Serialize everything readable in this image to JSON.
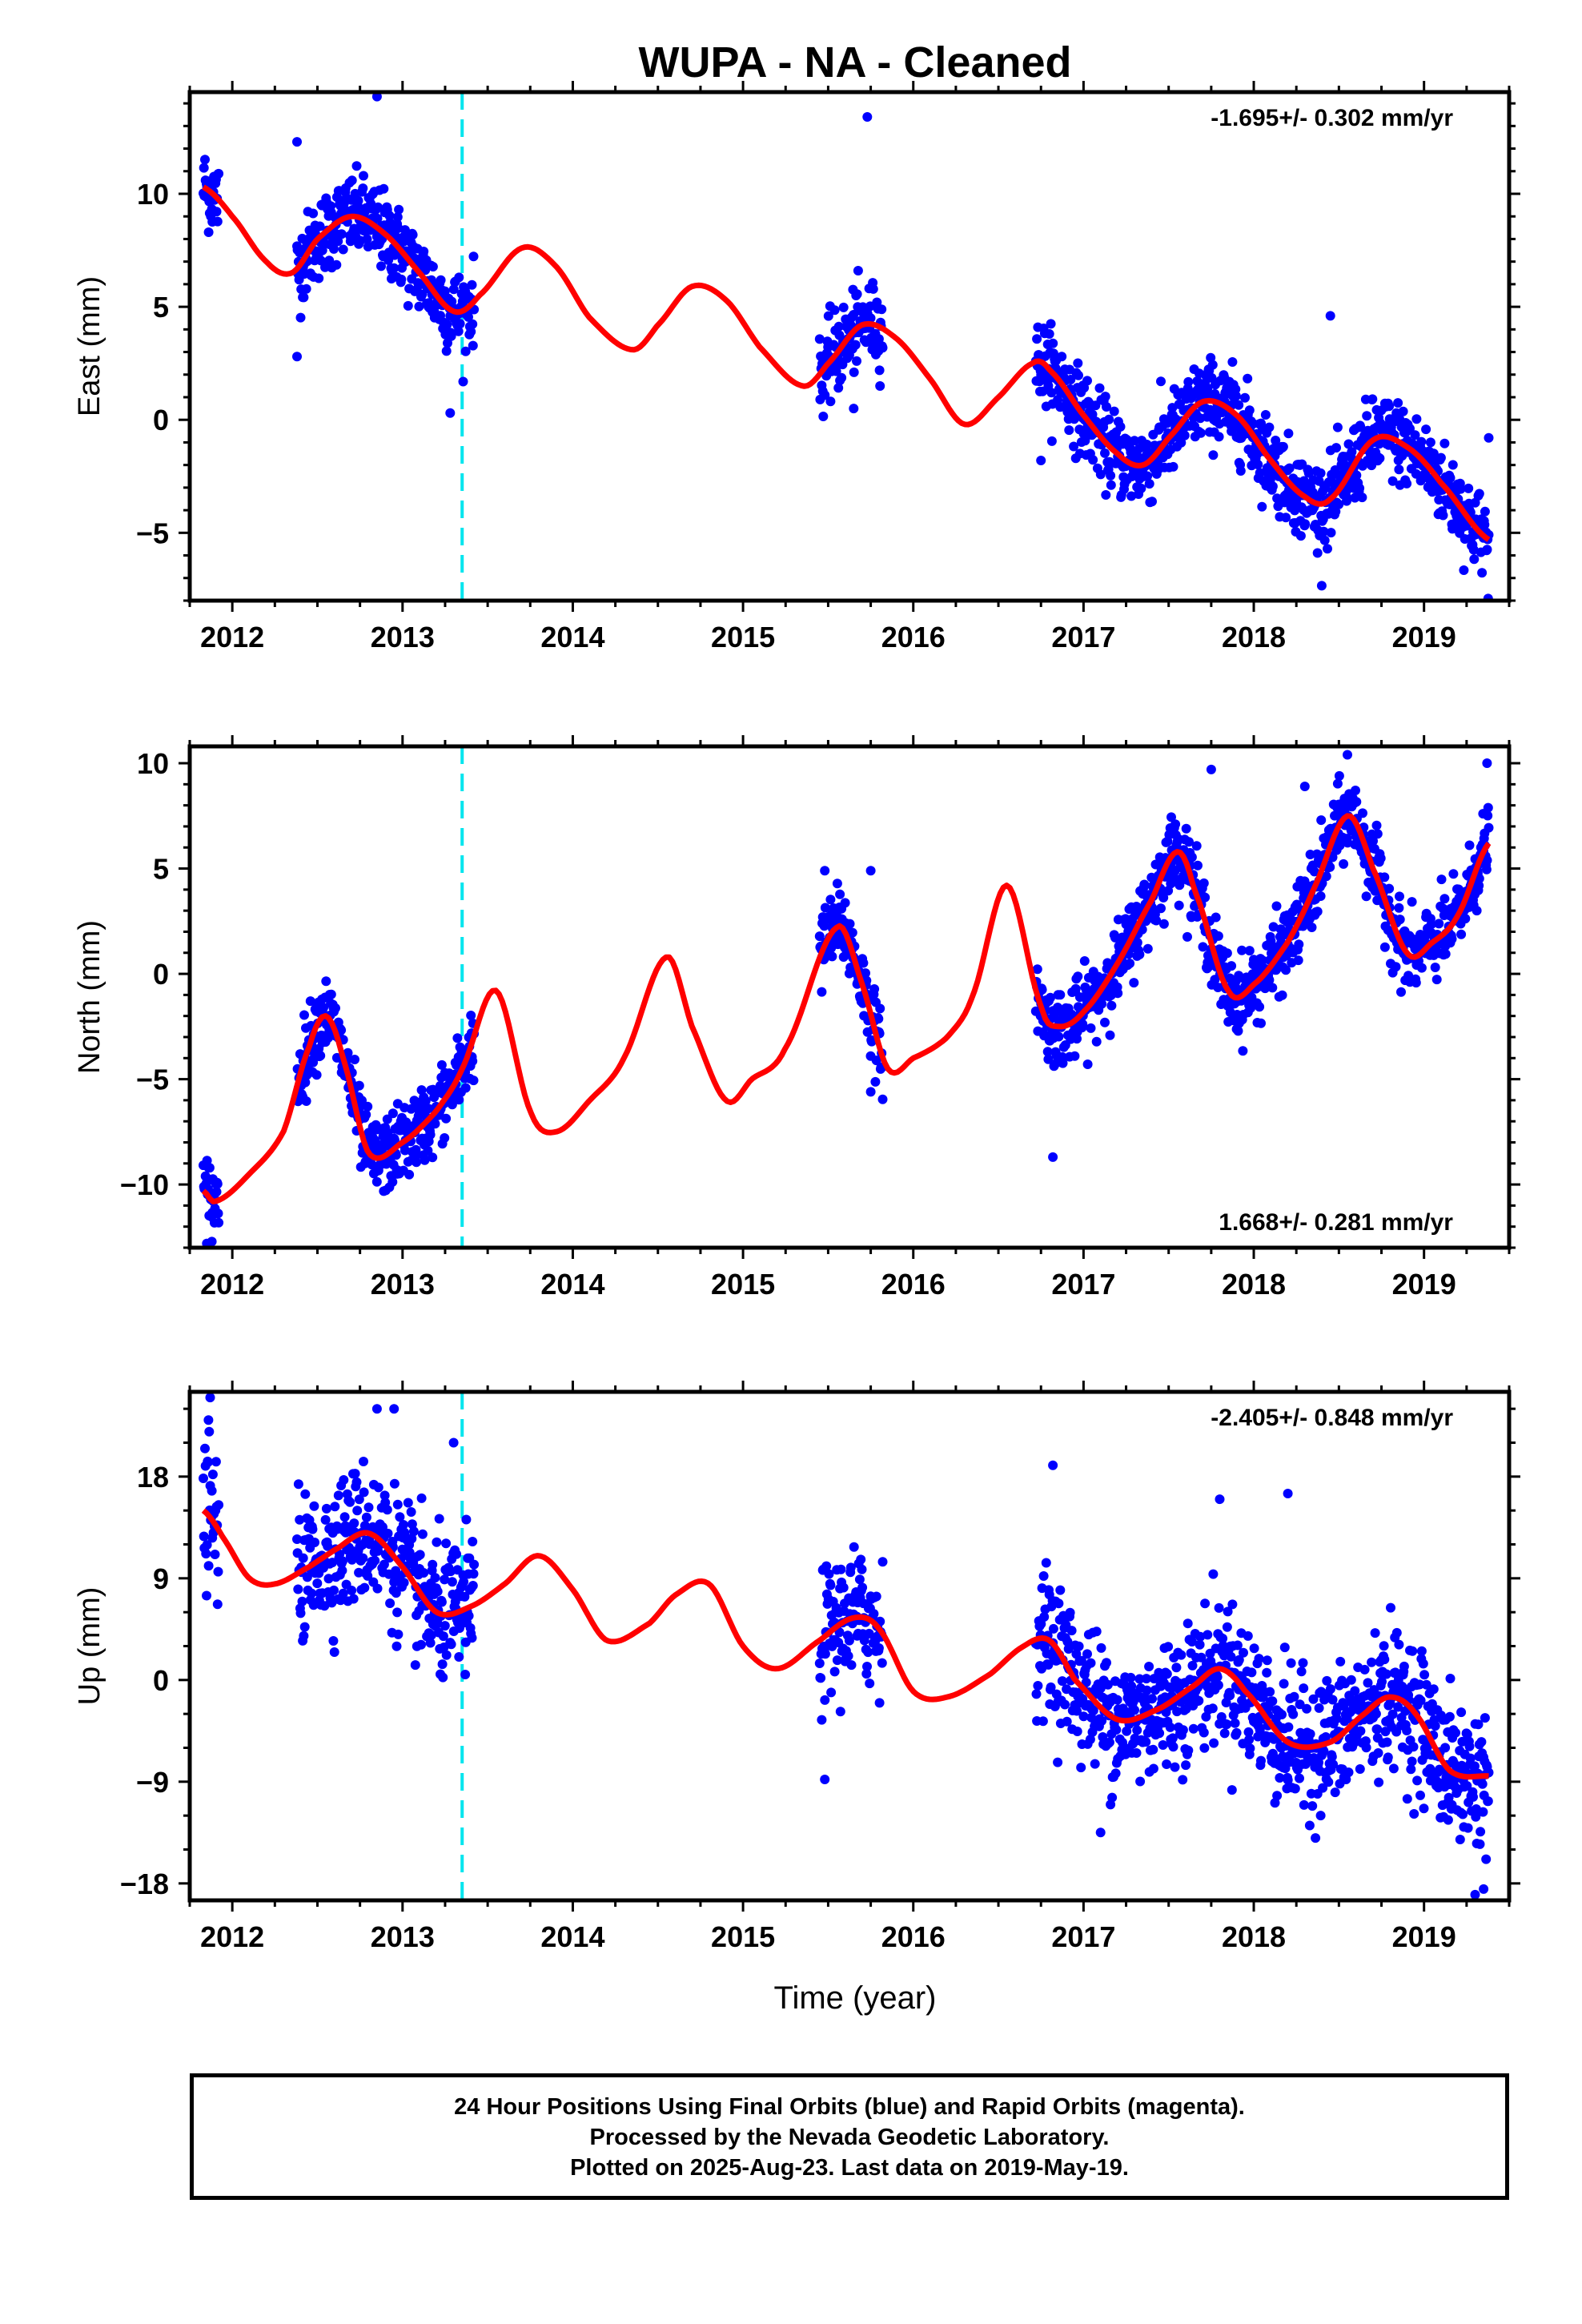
{
  "title": "WUPA  - NA - Cleaned",
  "x_axis_label": "Time (year)",
  "footer": {
    "line1": "24 Hour Positions Using Final Orbits (blue) and Rapid Orbits (magenta).",
    "line2": "Processed by the Nevada Geodetic Laboratory.",
    "line3": "Plotted on 2025-Aug-23. Last data on 2019-May-19."
  },
  "colors": {
    "data_points": "#0000ff",
    "model_fit": "#ff0000",
    "event_line": "#00e5ee",
    "frame": "#000000"
  },
  "chart_data": [
    {
      "type": "scatter",
      "panel": "East",
      "ylabel": "East (mm)",
      "rate_label": "-1.695+/- 0.302 mm/yr",
      "rate_position": "top-right",
      "xlim": [
        2011.75,
        2019.5
      ],
      "ylim": [
        -8,
        14.5
      ],
      "xticks": [
        2012,
        2013,
        2014,
        2015,
        2016,
        2017,
        2018,
        2019
      ],
      "yticks": [
        -5,
        0,
        5,
        10
      ],
      "event_line_x": 2013.35,
      "data_segments": [
        [
          2011.83,
          2011.92
        ],
        [
          2012.38,
          2013.42
        ],
        [
          2015.45,
          2015.82
        ],
        [
          2016.72,
          2019.38
        ]
      ],
      "model_series": {
        "name": "model",
        "x": [
          2011.83,
          2012.0,
          2012.2,
          2012.35,
          2012.5,
          2012.7,
          2012.9,
          2013.1,
          2013.3,
          2013.45,
          2013.7,
          2013.9,
          2014.1,
          2014.35,
          2014.5,
          2014.7,
          2014.9,
          2015.1,
          2015.35,
          2015.5,
          2015.7,
          2015.9,
          2016.1,
          2016.3,
          2016.5,
          2016.7,
          2016.8,
          2017.0,
          2017.2,
          2017.35,
          2017.5,
          2017.7,
          2017.9,
          2018.1,
          2018.3,
          2018.45,
          2018.7,
          2018.9,
          2019.1,
          2019.38
        ],
        "y": [
          10.3,
          9.0,
          7.0,
          6.5,
          8.0,
          9.0,
          8.2,
          6.5,
          4.8,
          5.5,
          7.6,
          6.8,
          4.5,
          3.1,
          4.2,
          5.9,
          5.3,
          3.2,
          1.5,
          2.5,
          4.2,
          3.6,
          1.8,
          -0.2,
          1.0,
          2.5,
          2.2,
          0.2,
          -1.5,
          -2.0,
          -0.8,
          0.8,
          0.2,
          -1.8,
          -3.4,
          -3.5,
          -0.9,
          -1.2,
          -2.8,
          -5.3
        ]
      },
      "outliers": [
        {
          "x": 2012.85,
          "y": 14.3
        },
        {
          "x": 2015.73,
          "y": 13.4
        },
        {
          "x": 2018.45,
          "y": 4.6
        },
        {
          "x": 2012.38,
          "y": 12.3
        },
        {
          "x": 2012.38,
          "y": 2.8
        },
        {
          "x": 2015.65,
          "y": 0.5
        },
        {
          "x": 2013.28,
          "y": 0.3
        },
        {
          "x": 2019.38,
          "y": -0.8
        },
        {
          "x": 2016.75,
          "y": -1.8
        }
      ]
    },
    {
      "type": "scatter",
      "panel": "North",
      "ylabel": "North (mm)",
      "rate_label": "1.668+/- 0.281 mm/yr",
      "rate_position": "bottom-right",
      "xlim": [
        2011.75,
        2019.5
      ],
      "ylim": [
        -13,
        10.8
      ],
      "xticks": [
        2012,
        2013,
        2014,
        2015,
        2016,
        2017,
        2018,
        2019
      ],
      "yticks": [
        -10,
        -5,
        0,
        5,
        10
      ],
      "event_line_x": 2013.35,
      "data_segments": [
        [
          2011.83,
          2011.92
        ],
        [
          2012.38,
          2013.42
        ],
        [
          2015.45,
          2015.82
        ],
        [
          2016.72,
          2019.38
        ]
      ],
      "model_series": {
        "name": "model",
        "x": [
          2011.83,
          2011.9,
          2012.1,
          2012.3,
          2012.45,
          2012.55,
          2012.65,
          2012.8,
          2013.0,
          2013.2,
          2013.35,
          2013.55,
          2013.75,
          2013.9,
          2014.1,
          2014.3,
          2014.55,
          2014.7,
          2014.9,
          2015.05,
          2015.25,
          2015.55,
          2015.7,
          2015.85,
          2016.0,
          2016.2,
          2016.35,
          2016.55,
          2016.75,
          2016.85,
          2017.0,
          2017.2,
          2017.4,
          2017.55,
          2017.65,
          2017.85,
          2018.0,
          2018.2,
          2018.35,
          2018.55,
          2018.7,
          2018.9,
          2019.05,
          2019.2,
          2019.38
        ],
        "y": [
          -10.3,
          -10.8,
          -9.5,
          -7.5,
          -3.5,
          -2.0,
          -4.0,
          -8.5,
          -8.0,
          -6.5,
          -4.5,
          -0.8,
          -6.5,
          -7.5,
          -6.0,
          -4.0,
          0.8,
          -2.5,
          -6.0,
          -5.0,
          -3.5,
          2.2,
          -0.5,
          -4.5,
          -4.0,
          -3.0,
          -1.0,
          4.2,
          -1.5,
          -2.5,
          -1.8,
          0.5,
          3.5,
          5.8,
          4.0,
          -0.8,
          -0.5,
          1.5,
          4.0,
          7.5,
          5.0,
          1.0,
          1.5,
          2.8,
          6.2
        ]
      },
      "outliers": [
        {
          "x": 2016.82,
          "y": -8.7
        },
        {
          "x": 2017.75,
          "y": 9.7
        },
        {
          "x": 2018.3,
          "y": 8.9
        },
        {
          "x": 2019.37,
          "y": 10.0
        },
        {
          "x": 2015.75,
          "y": 4.9
        },
        {
          "x": 2015.48,
          "y": 4.9
        },
        {
          "x": 2015.75,
          "y": -5.6
        },
        {
          "x": 2011.85,
          "y": -12.8
        },
        {
          "x": 2018.55,
          "y": 10.4
        }
      ]
    },
    {
      "type": "scatter",
      "panel": "Up",
      "ylabel": "Up (mm)",
      "rate_label": "-2.405+/- 0.848 mm/yr",
      "rate_position": "top-right",
      "xlabel": "Time (year)",
      "xlim": [
        2011.75,
        2019.5
      ],
      "ylim": [
        -19.5,
        25.5
      ],
      "xticks": [
        2012,
        2013,
        2014,
        2015,
        2016,
        2017,
        2018,
        2019
      ],
      "yticks": [
        -18,
        -9,
        0,
        9,
        18
      ],
      "event_line_x": 2013.35,
      "data_segments": [
        [
          2011.83,
          2011.92
        ],
        [
          2012.38,
          2013.42
        ],
        [
          2015.45,
          2015.82
        ],
        [
          2016.72,
          2019.38
        ]
      ],
      "model_series": {
        "name": "model",
        "x": [
          2011.83,
          2011.95,
          2012.1,
          2012.25,
          2012.45,
          2012.6,
          2012.8,
          2013.0,
          2013.2,
          2013.4,
          2013.6,
          2013.8,
          2014.0,
          2014.2,
          2014.45,
          2014.6,
          2014.8,
          2015.0,
          2015.2,
          2015.45,
          2015.65,
          2015.8,
          2016.0,
          2016.2,
          2016.45,
          2016.65,
          2016.8,
          2016.95,
          2017.2,
          2017.45,
          2017.65,
          2017.8,
          2017.95,
          2018.2,
          2018.45,
          2018.65,
          2018.8,
          2018.95,
          2019.15,
          2019.38
        ],
        "y": [
          15.0,
          12.5,
          9.0,
          8.5,
          10.0,
          11.5,
          13.0,
          10.0,
          6.0,
          6.5,
          8.5,
          11.0,
          8.0,
          3.5,
          5.0,
          7.5,
          8.5,
          3.0,
          1.0,
          3.5,
          5.5,
          4.5,
          -1.0,
          -1.5,
          0.5,
          3.0,
          3.5,
          0.0,
          -3.5,
          -2.5,
          -0.5,
          1.0,
          -1.0,
          -5.5,
          -5.5,
          -3.0,
          -1.5,
          -3.0,
          -8.0,
          -8.5
        ]
      },
      "outliers": [
        {
          "x": 2011.87,
          "y": 25.0
        },
        {
          "x": 2011.86,
          "y": 23.0
        },
        {
          "x": 2012.85,
          "y": 24.0
        },
        {
          "x": 2012.95,
          "y": 24.0
        },
        {
          "x": 2013.3,
          "y": 21.0
        },
        {
          "x": 2016.82,
          "y": 19.0
        },
        {
          "x": 2017.8,
          "y": 16.0
        },
        {
          "x": 2018.2,
          "y": 16.5
        },
        {
          "x": 2015.48,
          "y": -8.8
        },
        {
          "x": 2017.1,
          "y": -13.5
        },
        {
          "x": 2019.3,
          "y": -19.0
        },
        {
          "x": 2019.35,
          "y": -18.5
        }
      ]
    }
  ]
}
